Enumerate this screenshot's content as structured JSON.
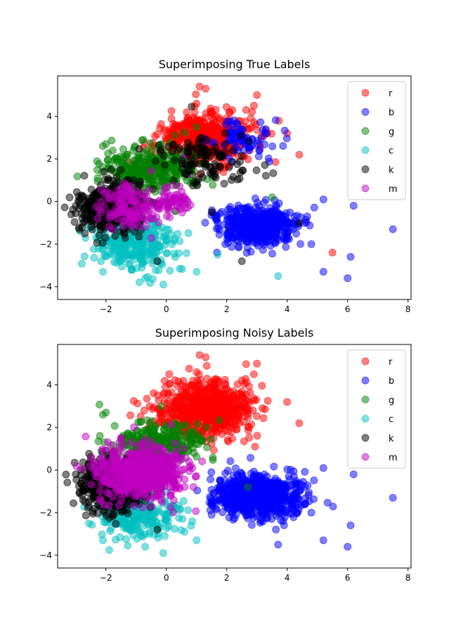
{
  "chart_data": [
    {
      "type": "scatter",
      "title": "Superimposing True Labels",
      "xlabel": "",
      "ylabel": "",
      "xlim": [
        -3.6,
        8.1
      ],
      "ylim": [
        -4.6,
        5.9
      ],
      "xticks": [
        -2,
        0,
        2,
        4,
        6,
        8
      ],
      "yticks": [
        -4,
        -2,
        0,
        2,
        4
      ],
      "xtick_labels": [
        "−2",
        "0",
        "2",
        "4",
        "6",
        "8"
      ],
      "ytick_labels": [
        "−4",
        "−2",
        "0",
        "2",
        "4"
      ],
      "grid": false,
      "legend_position": "top-right",
      "series": [
        {
          "name": "r",
          "color": "#ff0000",
          "n": 450,
          "clusters": [
            {
              "cx": 1.3,
              "cy": 3.0,
              "sx": 0.8,
              "sy": 0.6,
              "w": 1
            }
          ],
          "outliers": [
            [
              1.1,
              5.4
            ],
            [
              1.3,
              5.3
            ],
            [
              3.0,
              5.0
            ],
            [
              1.0,
              4.6
            ],
            [
              2.9,
              4.5
            ],
            [
              4.4,
              2.2
            ],
            [
              5.5,
              -2.4
            ],
            [
              4.0,
              3.2
            ]
          ]
        },
        {
          "name": "b",
          "color": "#0000ff",
          "n": 600,
          "clusters": [
            {
              "cx": 3.0,
              "cy": -1.1,
              "sx": 0.7,
              "sy": 0.45,
              "w": 0.85
            },
            {
              "cx": 2.5,
              "cy": 3.0,
              "sx": 0.6,
              "sy": 0.5,
              "w": 0.15
            }
          ],
          "outliers": [
            [
              7.5,
              -1.3
            ],
            [
              6.2,
              -0.2
            ],
            [
              5.2,
              0.1
            ],
            [
              6.0,
              -3.6
            ],
            [
              6.1,
              -2.6
            ],
            [
              5.2,
              -3.3
            ],
            [
              4.8,
              -2.0
            ]
          ]
        },
        {
          "name": "g",
          "color": "#008000",
          "n": 350,
          "clusters": [
            {
              "cx": -0.5,
              "cy": 1.5,
              "sx": 0.7,
              "sy": 0.5,
              "w": 1
            }
          ],
          "outliers": [
            [
              -2.0,
              2.7
            ],
            [
              -2.1,
              2.6
            ],
            [
              3.5,
              0.2
            ],
            [
              1.0,
              3.5
            ]
          ]
        },
        {
          "name": "c",
          "color": "#00bfbf",
          "n": 300,
          "clusters": [
            {
              "cx": -1.0,
              "cy": -2.0,
              "sx": 0.7,
              "sy": 0.6,
              "w": 1
            }
          ],
          "outliers": [
            [
              -0.1,
              -3.9
            ],
            [
              -2.1,
              -3.3
            ],
            [
              1.0,
              -3.3
            ],
            [
              3.7,
              -3.5
            ],
            [
              -0.7,
              -3.6
            ],
            [
              1.7,
              -2.5
            ]
          ]
        },
        {
          "name": "k",
          "color": "#000000",
          "n": 600,
          "clusters": [
            {
              "cx": -1.8,
              "cy": -0.3,
              "sx": 0.55,
              "sy": 0.55,
              "w": 0.75
            },
            {
              "cx": 1.2,
              "cy": 2.0,
              "sx": 0.8,
              "sy": 0.6,
              "w": 0.25
            }
          ],
          "outliers": [
            [
              -3.0,
              -0.2
            ],
            [
              -2.7,
              -1.5
            ],
            [
              2.5,
              -2.8
            ],
            [
              4.4,
              -1.0
            ],
            [
              -0.3,
              -2.8
            ],
            [
              1.5,
              -0.5
            ]
          ]
        },
        {
          "name": "m",
          "color": "#bf00bf",
          "n": 200,
          "clusters": [
            {
              "cx": -1.2,
              "cy": -0.3,
              "sx": 0.45,
              "sy": 0.5,
              "w": 0.6
            },
            {
              "cx": 0.3,
              "cy": 0.0,
              "sx": 0.35,
              "sy": 0.3,
              "w": 0.4
            }
          ],
          "outliers": []
        }
      ]
    },
    {
      "type": "scatter",
      "title": "Superimposing Noisy Labels",
      "xlabel": "",
      "ylabel": "",
      "xlim": [
        -3.6,
        8.1
      ],
      "ylim": [
        -4.6,
        5.9
      ],
      "xticks": [
        -2,
        0,
        2,
        4,
        6,
        8
      ],
      "yticks": [
        -4,
        -2,
        0,
        2,
        4
      ],
      "xtick_labels": [
        "−2",
        "0",
        "2",
        "4",
        "6",
        "8"
      ],
      "ytick_labels": [
        "−4",
        "−2",
        "0",
        "2",
        "4"
      ],
      "grid": false,
      "legend_position": "top-right",
      "series": [
        {
          "name": "r",
          "color": "#ff0000",
          "n": 700,
          "clusters": [
            {
              "cx": 1.3,
              "cy": 2.9,
              "sx": 0.8,
              "sy": 0.65,
              "w": 1
            }
          ],
          "outliers": [
            [
              1.1,
              5.4
            ],
            [
              1.3,
              5.3
            ],
            [
              3.0,
              5.0
            ],
            [
              1.0,
              4.6
            ],
            [
              2.9,
              4.5
            ],
            [
              4.4,
              2.2
            ],
            [
              4.0,
              3.2
            ]
          ]
        },
        {
          "name": "b",
          "color": "#0000ff",
          "n": 750,
          "clusters": [
            {
              "cx": 3.0,
              "cy": -1.2,
              "sx": 0.75,
              "sy": 0.5,
              "w": 1
            }
          ],
          "outliers": [
            [
              7.5,
              -1.3
            ],
            [
              6.2,
              -0.2
            ],
            [
              5.2,
              0.1
            ],
            [
              6.0,
              -3.6
            ],
            [
              6.1,
              -2.6
            ],
            [
              5.2,
              -3.3
            ],
            [
              4.8,
              -2.0
            ],
            [
              3.7,
              -3.5
            ]
          ]
        },
        {
          "name": "g",
          "color": "#008000",
          "n": 300,
          "clusters": [
            {
              "cx": -0.3,
              "cy": 1.3,
              "sx": 0.75,
              "sy": 0.45,
              "w": 1
            }
          ],
          "outliers": [
            [
              -2.0,
              2.7
            ],
            [
              -2.1,
              2.6
            ],
            [
              2.7,
              -0.8
            ]
          ]
        },
        {
          "name": "c",
          "color": "#00bfbf",
          "n": 250,
          "clusters": [
            {
              "cx": -1.0,
              "cy": -2.2,
              "sx": 0.7,
              "sy": 0.5,
              "w": 1
            }
          ],
          "outliers": [
            [
              -0.1,
              -3.9
            ],
            [
              -2.1,
              -3.3
            ],
            [
              1.0,
              -3.3
            ],
            [
              -0.7,
              -3.6
            ],
            [
              0.6,
              -2.9
            ]
          ]
        },
        {
          "name": "k",
          "color": "#000000",
          "n": 500,
          "clusters": [
            {
              "cx": -1.8,
              "cy": -0.7,
              "sx": 0.55,
              "sy": 0.6,
              "w": 1
            }
          ],
          "outliers": [
            [
              -3.0,
              -0.2
            ],
            [
              -2.7,
              -1.5
            ],
            [
              -0.3,
              -2.8
            ]
          ]
        },
        {
          "name": "m",
          "color": "#bf00bf",
          "n": 650,
          "clusters": [
            {
              "cx": -0.8,
              "cy": -0.1,
              "sx": 0.7,
              "sy": 0.6,
              "w": 1
            }
          ],
          "outliers": []
        }
      ]
    }
  ]
}
